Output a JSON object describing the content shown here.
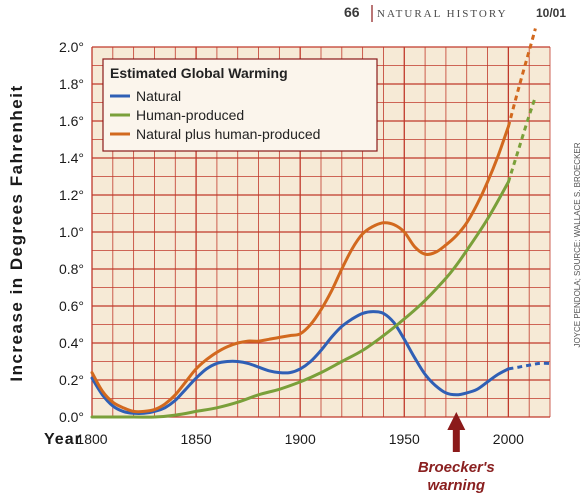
{
  "header": {
    "page_number": "66",
    "magazine": "NATURAL HISTORY",
    "issue": "10/01"
  },
  "credit": "JOYCE PENDOLA; SOURCE: WALLACE S. BROECKER",
  "chart_data": {
    "type": "line",
    "title": "Estimated Global Warming",
    "xlabel": "Year",
    "ylabel": "Increase in Degrees Fahrenheit",
    "xlim": [
      1800,
      2020
    ],
    "ylim": [
      0,
      2.0
    ],
    "x_ticks": [
      "1800",
      "1850",
      "1900",
      "1950",
      "2000"
    ],
    "y_ticks": [
      "0.0°",
      "0.2°",
      "0.4°",
      "0.6°",
      "0.8°",
      "1.0°",
      "1.2°",
      "1.4°",
      "1.6°",
      "1.8°",
      "2.0°"
    ],
    "grid": true,
    "legend_position": "top-left",
    "series": [
      {
        "name": "Natural",
        "color": "#2f5fb5",
        "points": [
          [
            1800,
            0.21
          ],
          [
            1805,
            0.12
          ],
          [
            1810,
            0.06
          ],
          [
            1815,
            0.03
          ],
          [
            1820,
            0.02
          ],
          [
            1825,
            0.02
          ],
          [
            1830,
            0.03
          ],
          [
            1835,
            0.05
          ],
          [
            1840,
            0.09
          ],
          [
            1845,
            0.15
          ],
          [
            1850,
            0.21
          ],
          [
            1855,
            0.26
          ],
          [
            1860,
            0.29
          ],
          [
            1865,
            0.3
          ],
          [
            1870,
            0.3
          ],
          [
            1875,
            0.29
          ],
          [
            1880,
            0.27
          ],
          [
            1885,
            0.25
          ],
          [
            1890,
            0.24
          ],
          [
            1895,
            0.24
          ],
          [
            1900,
            0.26
          ],
          [
            1905,
            0.3
          ],
          [
            1910,
            0.36
          ],
          [
            1915,
            0.43
          ],
          [
            1920,
            0.49
          ],
          [
            1925,
            0.53
          ],
          [
            1930,
            0.56
          ],
          [
            1935,
            0.57
          ],
          [
            1940,
            0.56
          ],
          [
            1945,
            0.51
          ],
          [
            1950,
            0.42
          ],
          [
            1955,
            0.32
          ],
          [
            1960,
            0.23
          ],
          [
            1965,
            0.17
          ],
          [
            1970,
            0.13
          ],
          [
            1975,
            0.12
          ],
          [
            1980,
            0.13
          ],
          [
            1985,
            0.15
          ],
          [
            1990,
            0.19
          ],
          [
            1995,
            0.23
          ],
          [
            2000,
            0.26
          ]
        ],
        "projection": [
          [
            2000,
            0.26
          ],
          [
            2005,
            0.27
          ],
          [
            2010,
            0.28
          ],
          [
            2015,
            0.29
          ],
          [
            2020,
            0.29
          ]
        ]
      },
      {
        "name": "Human-produced",
        "color": "#7aa03a",
        "points": [
          [
            1800,
            0.0
          ],
          [
            1820,
            0.0
          ],
          [
            1830,
            0.0
          ],
          [
            1840,
            0.01
          ],
          [
            1850,
            0.03
          ],
          [
            1860,
            0.05
          ],
          [
            1870,
            0.08
          ],
          [
            1880,
            0.12
          ],
          [
            1890,
            0.15
          ],
          [
            1900,
            0.19
          ],
          [
            1910,
            0.24
          ],
          [
            1920,
            0.3
          ],
          [
            1930,
            0.36
          ],
          [
            1940,
            0.44
          ],
          [
            1950,
            0.53
          ],
          [
            1960,
            0.63
          ],
          [
            1970,
            0.75
          ],
          [
            1975,
            0.82
          ],
          [
            1980,
            0.9
          ],
          [
            1990,
            1.07
          ],
          [
            2000,
            1.27
          ]
        ],
        "projection": [
          [
            2000,
            1.27
          ],
          [
            2005,
            1.45
          ],
          [
            2010,
            1.63
          ],
          [
            2013,
            1.73
          ]
        ]
      },
      {
        "name": "Natural plus human-produced",
        "color": "#d2691e",
        "points": [
          [
            1800,
            0.24
          ],
          [
            1805,
            0.14
          ],
          [
            1810,
            0.08
          ],
          [
            1815,
            0.05
          ],
          [
            1820,
            0.03
          ],
          [
            1825,
            0.03
          ],
          [
            1830,
            0.04
          ],
          [
            1835,
            0.07
          ],
          [
            1840,
            0.12
          ],
          [
            1845,
            0.19
          ],
          [
            1850,
            0.26
          ],
          [
            1855,
            0.31
          ],
          [
            1860,
            0.35
          ],
          [
            1865,
            0.38
          ],
          [
            1870,
            0.4
          ],
          [
            1875,
            0.41
          ],
          [
            1880,
            0.41
          ],
          [
            1885,
            0.42
          ],
          [
            1890,
            0.43
          ],
          [
            1895,
            0.44
          ],
          [
            1900,
            0.45
          ],
          [
            1905,
            0.5
          ],
          [
            1910,
            0.58
          ],
          [
            1915,
            0.68
          ],
          [
            1920,
            0.8
          ],
          [
            1925,
            0.91
          ],
          [
            1930,
            0.99
          ],
          [
            1935,
            1.03
          ],
          [
            1940,
            1.05
          ],
          [
            1945,
            1.04
          ],
          [
            1950,
            1.0
          ],
          [
            1955,
            0.92
          ],
          [
            1960,
            0.88
          ],
          [
            1965,
            0.89
          ],
          [
            1970,
            0.93
          ],
          [
            1975,
            0.98
          ],
          [
            1980,
            1.05
          ],
          [
            1985,
            1.15
          ],
          [
            1990,
            1.27
          ],
          [
            1995,
            1.41
          ],
          [
            2000,
            1.57
          ]
        ],
        "projection": [
          [
            2000,
            1.57
          ],
          [
            2005,
            1.78
          ],
          [
            2010,
            1.98
          ],
          [
            2013,
            2.1
          ]
        ]
      }
    ],
    "annotations": [
      {
        "text_lines": [
          "Broecker's",
          "warning"
        ],
        "x": 1975
      }
    ]
  }
}
